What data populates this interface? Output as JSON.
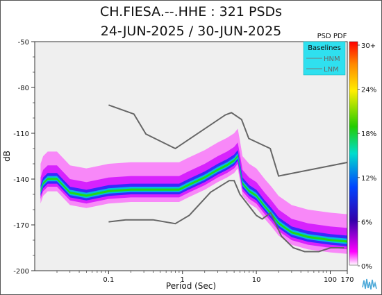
{
  "title": "CH.FIESA.--.HHE : 321 PSDs",
  "subtitle": "24-JUN-2025 / 30-JUN-2025",
  "colorbar_title": "PSD PDF",
  "legend": {
    "title": "Baselines",
    "items": [
      "HNM",
      "LNM"
    ],
    "background": "#2fe0ef",
    "line_color": "#777777"
  },
  "chart_data": {
    "type": "heatmap",
    "title": "CH.FIESA.--.HHE : 321 PSDs",
    "subtitle": "24-JUN-2025 / 30-JUN-2025",
    "xlabel": "Period (Sec)",
    "ylabel": "dB",
    "xscale": "log",
    "xlim": [
      0.01,
      170
    ],
    "ylim": [
      -200,
      -50
    ],
    "xticks": [
      0.1,
      1,
      10,
      100,
      170
    ],
    "xtick_labels": [
      "0.1",
      "1",
      "10",
      "100",
      "170"
    ],
    "yticks": [
      -50,
      -80,
      -110,
      -140,
      -170,
      -200
    ],
    "ytick_labels": [
      "-50",
      "-80",
      "-110",
      "-140",
      "-170",
      "-200"
    ],
    "grid": false,
    "plot_background": "#efefef",
    "colorbar": {
      "label": "PSD PDF",
      "ticks": [
        "30+",
        "24%",
        "18%",
        "12%",
        "6%",
        "0%"
      ],
      "colors": [
        "#ff0000",
        "#ff8800",
        "#ffee00",
        "#22cc00",
        "#00ddcc",
        "#0044ff",
        "#3300aa",
        "#ff00ff",
        "#ffffff"
      ]
    },
    "series": [
      {
        "name": "HNM",
        "x": [
          0.1,
          0.22,
          0.32,
          0.8,
          3.8,
          4.6,
          6.3,
          7.9,
          15.4,
          20,
          354.8
        ],
        "y": [
          -91.5,
          -97.4,
          -110.5,
          -120.0,
          -98.0,
          -96.5,
          -101.0,
          -113.4,
          -120.0,
          -138.0,
          -126.0
        ]
      },
      {
        "name": "LNM",
        "x": [
          0.1,
          0.17,
          0.4,
          0.8,
          1.24,
          2.4,
          4.3,
          5.0,
          6.0,
          10.0,
          12.0,
          15.6,
          21.9,
          31.6,
          45.0,
          70.0,
          101.0,
          154.0
        ],
        "y": [
          -168.0,
          -166.7,
          -166.7,
          -169.2,
          -163.7,
          -148.6,
          -141.0,
          -141.0,
          -150.0,
          -163.8,
          -166.2,
          -162.1,
          -177.5,
          -185.0,
          -187.5,
          -187.5,
          -185.0,
          -185.0
        ]
      }
    ],
    "density_ridge": {
      "x": [
        0.012,
        0.013,
        0.015,
        0.02,
        0.03,
        0.05,
        0.1,
        0.2,
        0.5,
        0.9,
        1.2,
        2,
        3,
        4,
        5,
        5.6,
        6,
        6.5,
        8,
        10,
        13,
        16,
        20,
        30,
        50,
        100,
        170
      ],
      "y": [
        -148,
        -143,
        -140,
        -140,
        -149,
        -151,
        -148,
        -147,
        -147,
        -147,
        -144,
        -139,
        -134,
        -131,
        -128,
        -125,
        -133,
        -143,
        -148,
        -151,
        -158,
        -163,
        -169,
        -175,
        -178,
        -180,
        -181
      ]
    }
  }
}
